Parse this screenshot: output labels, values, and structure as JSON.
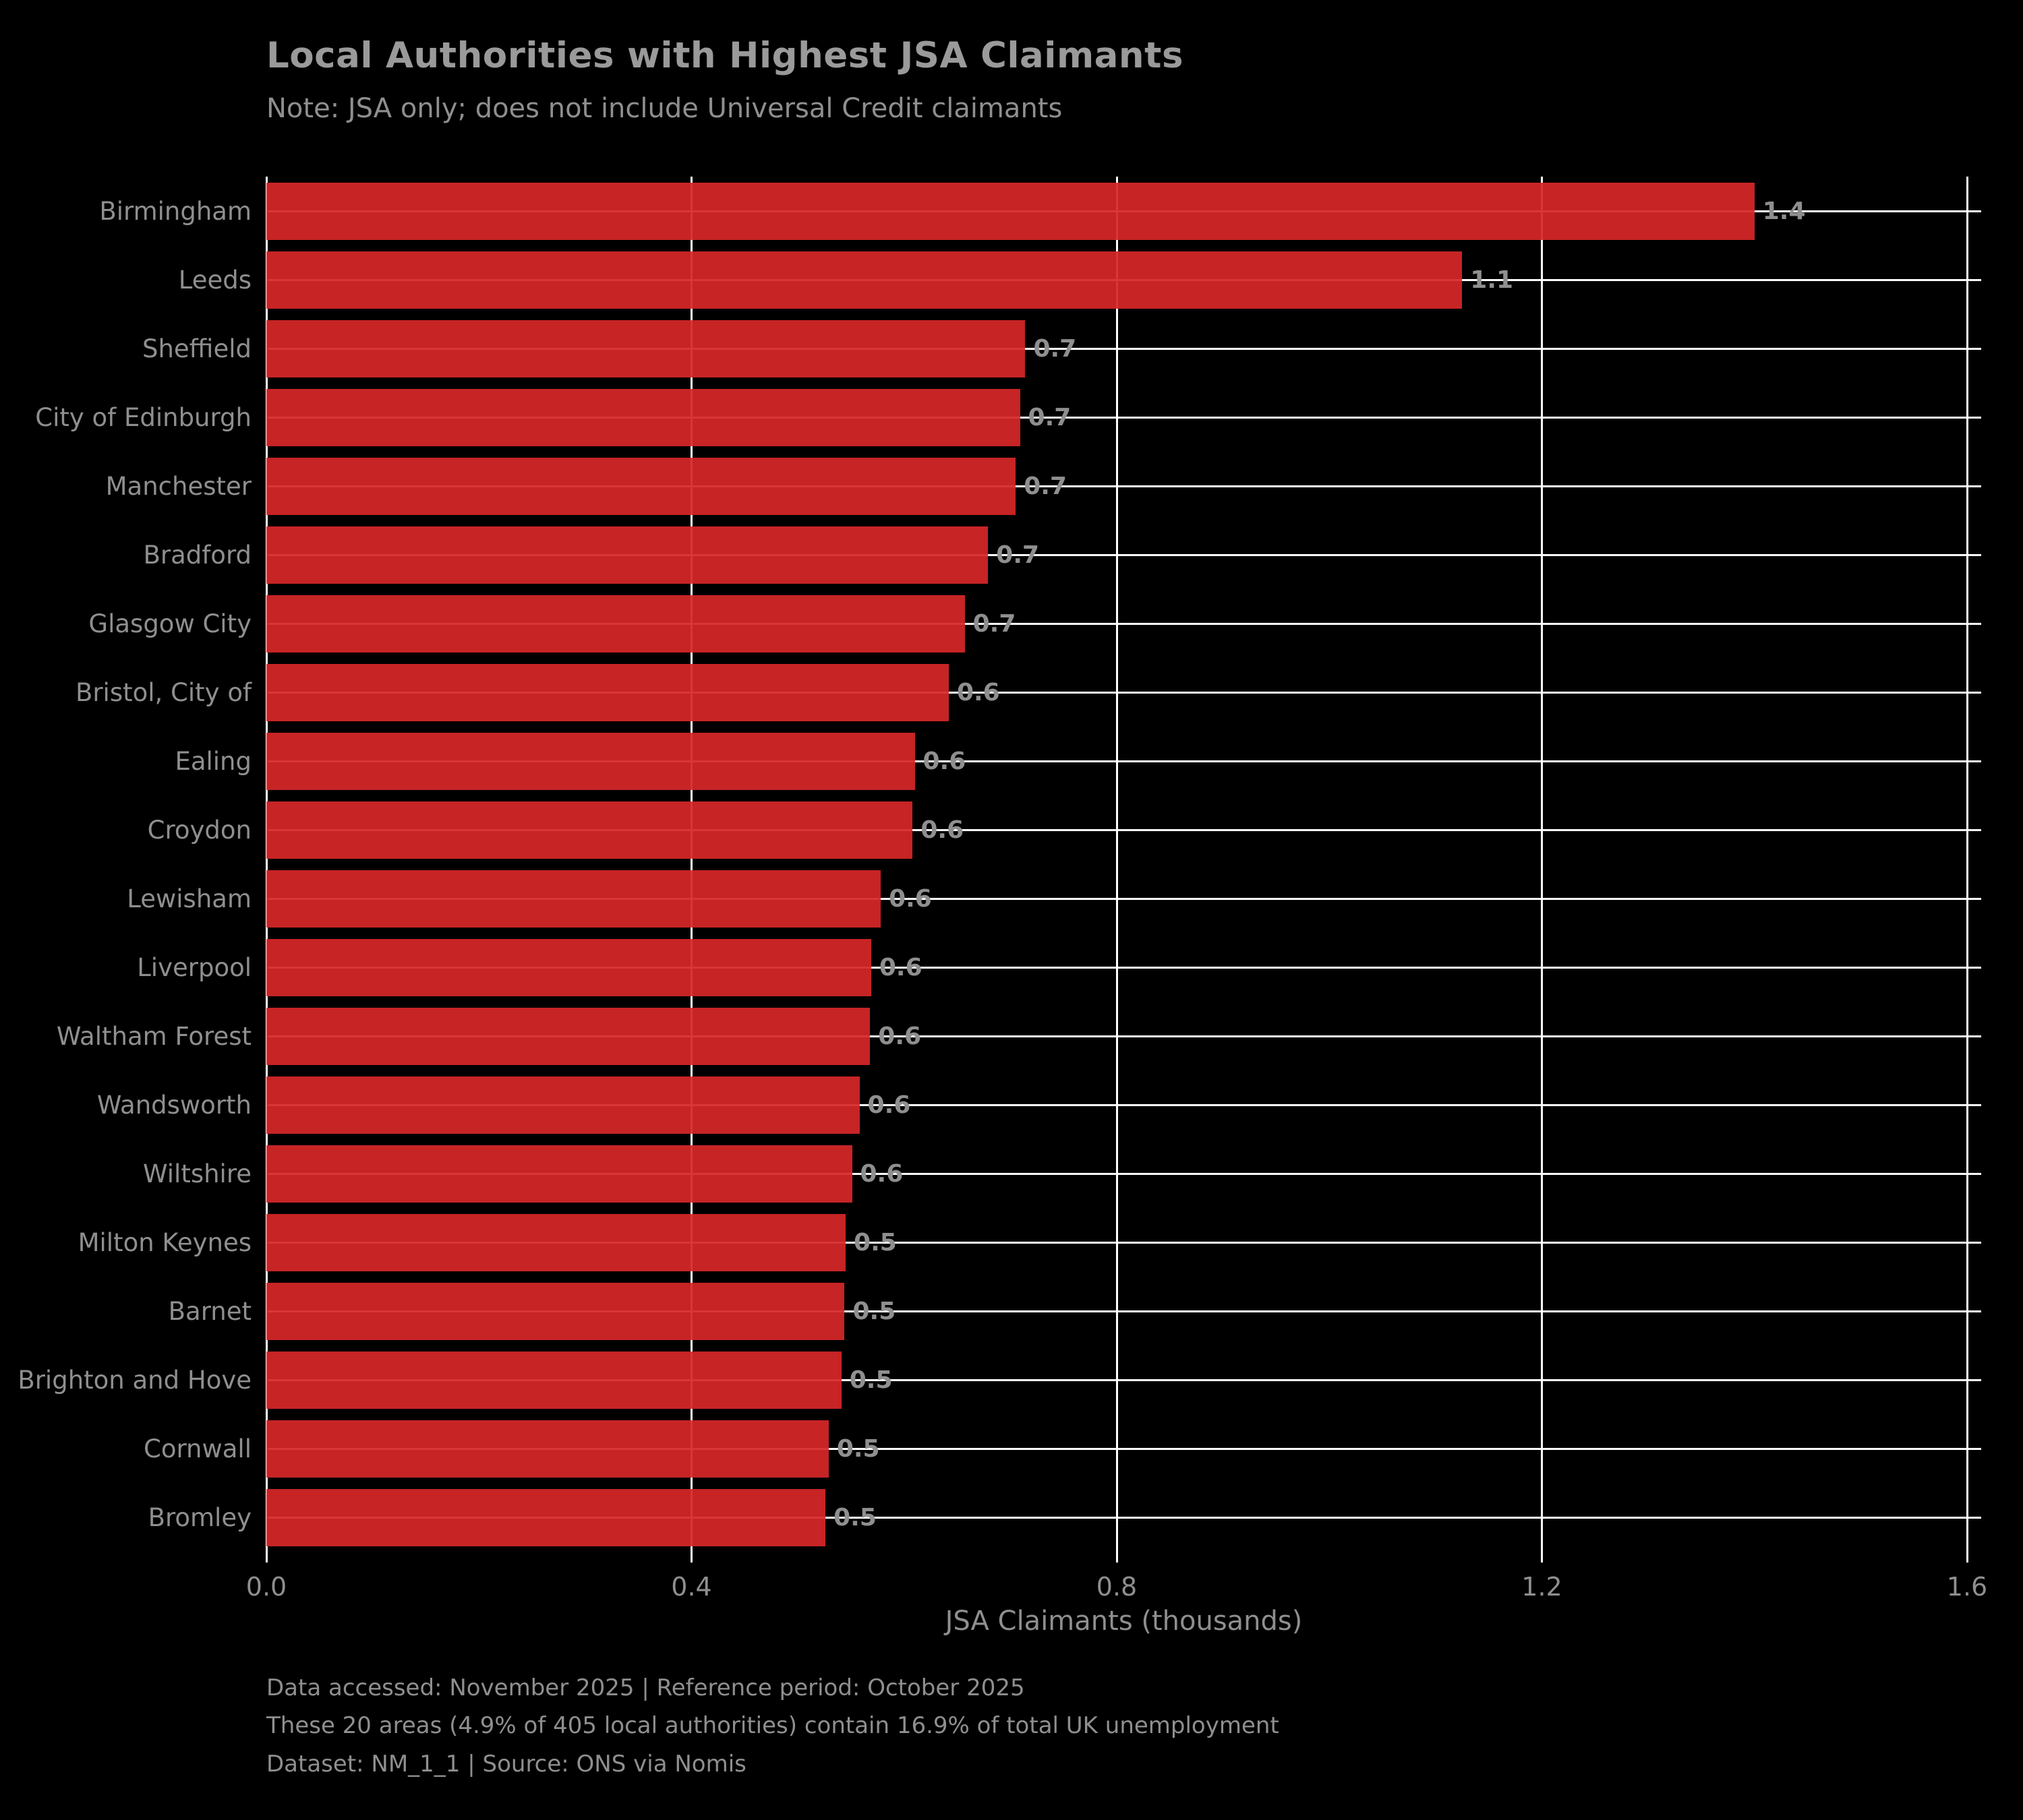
{
  "chart_data": {
    "type": "bar",
    "orientation": "horizontal",
    "title": "Local Authorities with Highest JSA Claimants",
    "subtitle": "Note: JSA only; does not include Universal Credit claimants",
    "xlabel": "JSA Claimants (thousands)",
    "categories": [
      "Birmingham",
      "Leeds",
      "Sheffield",
      "City of Edinburgh",
      "Manchester",
      "Bradford",
      "Glasgow City",
      "Bristol, City of",
      "Ealing",
      "Croydon",
      "Lewisham",
      "Liverpool",
      "Waltham Forest",
      "Wandsworth",
      "Wiltshire",
      "Milton Keynes",
      "Barnet",
      "Brighton and Hove",
      "Cornwall",
      "Bromley"
    ],
    "values": [
      1.4,
      1.125,
      0.714,
      0.709,
      0.705,
      0.679,
      0.657,
      0.642,
      0.61,
      0.608,
      0.578,
      0.569,
      0.568,
      0.558,
      0.551,
      0.545,
      0.544,
      0.541,
      0.529,
      0.526
    ],
    "bar_labels": [
      "1.4",
      "1.1",
      "0.7",
      "0.7",
      "0.7",
      "0.7",
      "0.7",
      "0.6",
      "0.6",
      "0.6",
      "0.6",
      "0.6",
      "0.6",
      "0.6",
      "0.6",
      "0.5",
      "0.5",
      "0.5",
      "0.5",
      "0.5"
    ],
    "xlim": [
      0,
      1.614
    ],
    "x_ticks": [
      0.0,
      0.4,
      0.8,
      1.2,
      1.6
    ],
    "x_tick_labels": [
      "0.0",
      "0.4",
      "0.8",
      "1.2",
      "1.6"
    ],
    "grid": true,
    "legend": "none"
  },
  "footer": {
    "line1": "Data accessed: November 2025 | Reference period: October 2025",
    "line2": "These 20 areas (4.9% of 405 local authorities) contain 16.9% of total UK unemployment",
    "line3": "Dataset: NM_1_1 | Source: ONS via Nomis"
  },
  "colors": {
    "background": "#000000",
    "bar": "#d62728",
    "gridline": "#ffffff",
    "text": "#8f8f8f"
  }
}
